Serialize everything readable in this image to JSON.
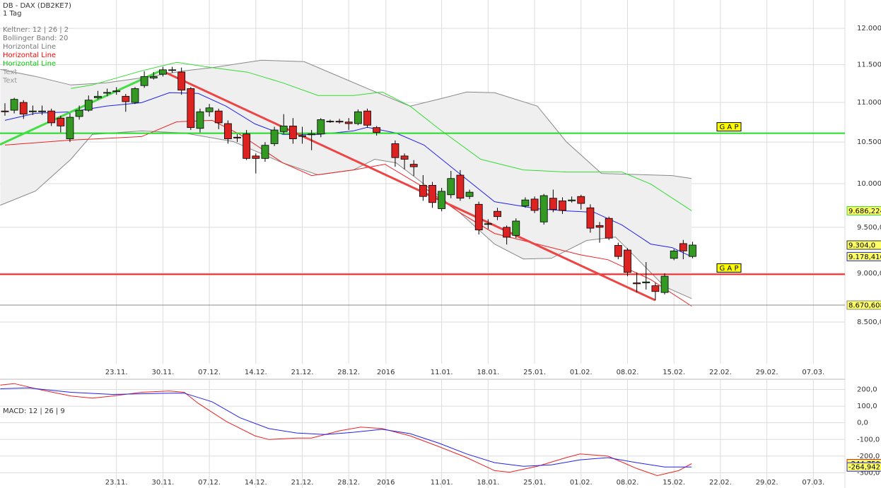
{
  "chart_data": [
    {
      "type": "candlestick",
      "title": "DB - DAX (DB2KE7)",
      "subtitle": "1 Tag",
      "log_scale": true,
      "grid": true,
      "xlim": [
        -0.53,
        90.4
      ],
      "ylim": [
        8094,
        12406
      ],
      "yticks": [
        {
          "value": 12000,
          "label": "12.000,"
        },
        {
          "value": 11500,
          "label": "11.500,"
        },
        {
          "value": 11000,
          "label": "11.000,"
        },
        {
          "value": 10500,
          "label": "10.500,"
        },
        {
          "value": 10000,
          "label": "10.000,"
        },
        {
          "value": 9500,
          "label": "9.500,0"
        },
        {
          "value": 9000,
          "label": "9.000,0"
        },
        {
          "value": 8500,
          "label": "8.500,0"
        }
      ],
      "xticks": [
        {
          "value": 12,
          "label": "23.11."
        },
        {
          "value": 17,
          "label": "30.11."
        },
        {
          "value": 22,
          "label": "07.12."
        },
        {
          "value": 27,
          "label": "14.12."
        },
        {
          "value": 32,
          "label": "21.12."
        },
        {
          "value": 37,
          "label": "28.12."
        },
        {
          "value": 41,
          "label": "2016"
        },
        {
          "value": 47,
          "label": "11.01."
        },
        {
          "value": 52,
          "label": "18.01."
        },
        {
          "value": 57,
          "label": "25.01."
        },
        {
          "value": 62,
          "label": "01.02."
        },
        {
          "value": 67,
          "label": "08.02."
        },
        {
          "value": 72,
          "label": "15.02."
        },
        {
          "value": 77,
          "label": "22.02."
        },
        {
          "value": 82,
          "label": "29.02."
        },
        {
          "value": 87,
          "label": "07.03."
        }
      ],
      "legend": [
        {
          "name": "Keltner: 12 | 26 | 2",
          "color": "#777777"
        },
        {
          "name": "Bollinger Band: 20",
          "color": "#777777"
        },
        {
          "name": "Horizontal Line",
          "color": "#777777"
        },
        {
          "name": "Horizontal Line",
          "color": "#ff0000"
        },
        {
          "name": "Horizontal Line",
          "color": "#00cc00"
        },
        {
          "name": "Text",
          "color": "#999999"
        },
        {
          "name": "Text",
          "color": "#999999"
        }
      ],
      "bollinger": {
        "color": "#888888",
        "fill": "#efefef",
        "upper": {
          "x": [
            -0.5,
            3.3,
            7.1,
            10.9,
            14.7,
            19.3,
            22.3,
            27.6,
            32.2,
            39,
            43.6,
            46.7,
            49.7,
            52.7,
            57.3,
            60.4,
            64.2,
            71.8,
            73.9
          ],
          "values": [
            11435,
            11341,
            11228,
            11256,
            11322,
            11416,
            11460,
            11560,
            11540,
            11182,
            10952,
            11043,
            11135,
            11126,
            10952,
            10506,
            10120,
            10095,
            10061
          ]
        },
        "lower": {
          "x": [
            -0.5,
            3.3,
            7.1,
            9.4,
            14.7,
            19.3,
            24.6,
            29.9,
            33.7,
            37.5,
            39.8,
            42.1,
            45.1,
            48.9,
            52.7,
            55.8,
            58.8,
            62.6,
            65.7,
            68,
            71,
            73.9
          ],
          "values": [
            9749,
            9913,
            10290,
            10594,
            10638,
            10612,
            10506,
            10247,
            10103,
            10162,
            10290,
            10247,
            9995,
            9669,
            9315,
            9153,
            9160,
            9354,
            9392,
            9160,
            8861,
            8737
          ]
        }
      },
      "lines": [
        {
          "color": "#33dd33",
          "x": [
            7.1,
            9.4,
            14.7,
            18.5,
            22.3,
            26.1,
            29.9,
            33.7,
            37.5,
            40.6,
            43.6,
            46.7,
            51.2,
            55.8,
            60.4,
            66.4,
            69.5,
            73.9
          ],
          "values": [
            11182,
            11228,
            11416,
            11530,
            11460,
            11398,
            11256,
            11090,
            11090,
            11135,
            10952,
            10665,
            10290,
            10162,
            10137,
            10137,
            9995,
            9686.224
          ],
          "last_label": "9.686,224"
        },
        {
          "color": "#2222ee",
          "x": [
            0,
            3.3,
            7.1,
            10.9,
            14.7,
            17.7,
            20.8,
            23.8,
            26.9,
            29.9,
            33.7,
            37.5,
            39,
            42.1,
            45.1,
            48.9,
            52.7,
            57.3,
            60.4,
            63.4,
            66.4,
            69.5,
            71.8,
            73.9
          ],
          "values": [
            10771,
            10861,
            10879,
            10952,
            10997,
            11126,
            11117,
            10952,
            10727,
            10594,
            10594,
            10638,
            10683,
            10612,
            10463,
            10120,
            9790,
            9709,
            9685,
            9669,
            9526,
            9315,
            9276,
            9178.416
          ],
          "last_label": "9.178,416"
        },
        {
          "color": "#ee2222",
          "x": [
            0,
            7.1,
            14.7,
            18.5,
            22.3,
            25.3,
            29.9,
            33,
            37.5,
            40.9,
            45.1,
            48.9,
            52.7,
            57.3,
            61.9,
            64.9,
            69.5,
            73.9
          ],
          "values": [
            10463,
            10524,
            10568,
            10753,
            10771,
            10594,
            10247,
            10095,
            10162,
            10230,
            9954,
            9669,
            9431,
            9315,
            9199,
            9145,
            8935,
            8660
          ]
        }
      ],
      "trendlines": [
        {
          "color": "#44dd44",
          "x": [
            -0.53,
            16.8
          ],
          "values": [
            10470,
            11420
          ]
        },
        {
          "color": "#ee4444",
          "x": [
            17,
            70
          ],
          "values": [
            11410,
            8720
          ]
        }
      ],
      "hlines": [
        {
          "color": "#888888",
          "value": 8670.608,
          "label": "8.670,608"
        },
        {
          "color": "#ff2222",
          "value": 8990,
          "text": "G A P"
        },
        {
          "color": "#22dd22",
          "value": 10610,
          "text": "G A P"
        }
      ],
      "candles": {
        "up_color": "#339922",
        "down_color": "#dd2222",
        "last_label": "9.304,0",
        "x": [
          0,
          1,
          2,
          3,
          4,
          5,
          6,
          7,
          8,
          9,
          10,
          11,
          12,
          13,
          14,
          15,
          16,
          17,
          18,
          19,
          20,
          21,
          22,
          23,
          24,
          25,
          26,
          27,
          28,
          29,
          30,
          31,
          32,
          33,
          34,
          35,
          36,
          37,
          38,
          39,
          40,
          42,
          43,
          44,
          45,
          46,
          47,
          48,
          49,
          50,
          51,
          52,
          53,
          54,
          55,
          56,
          57,
          58,
          59,
          60,
          61,
          62,
          63,
          64,
          65,
          66,
          67,
          68,
          69,
          70,
          71,
          72,
          73,
          74
        ],
        "open": [
          10890,
          10900,
          11000,
          10880,
          10880,
          10890,
          10800,
          10540,
          10820,
          10900,
          11060,
          11120,
          11140,
          11080,
          11000,
          11220,
          11320,
          11370,
          11420,
          11400,
          11180,
          10670,
          10880,
          10890,
          10730,
          10560,
          10600,
          10330,
          10300,
          10480,
          10630,
          10700,
          10570,
          10590,
          10600,
          10760,
          10760,
          10750,
          10730,
          10890,
          10680,
          10480,
          10330,
          10230,
          9980,
          9980,
          9710,
          9870,
          10100,
          9850,
          9760,
          9540,
          9680,
          9500,
          9410,
          9740,
          9820,
          9560,
          9830,
          9800,
          9800,
          9850,
          9720,
          9520,
          9600,
          9300,
          9250,
          8900,
          8900,
          8870,
          8800,
          9160,
          9320,
          9180
        ],
        "high": [
          10990,
          11060,
          11030,
          10960,
          10960,
          10920,
          10830,
          10860,
          10960,
          11090,
          11150,
          11180,
          11200,
          11110,
          11200,
          11410,
          11400,
          11470,
          11470,
          11460,
          11200,
          10920,
          10980,
          10920,
          10770,
          10600,
          10650,
          10360,
          10500,
          10690,
          10850,
          10800,
          10690,
          10650,
          10800,
          10780,
          10790,
          10800,
          10910,
          10920,
          10700,
          10520,
          10360,
          10280,
          10100,
          10020,
          9950,
          10150,
          10160,
          9930,
          9790,
          9590,
          9720,
          9520,
          9600,
          9840,
          9850,
          9880,
          9930,
          9840,
          9850,
          9870,
          9760,
          9560,
          9620,
          9330,
          9270,
          9010,
          9120,
          8900,
          9000,
          9260,
          9360,
          9340
        ],
        "low": [
          10830,
          10860,
          10790,
          10840,
          10840,
          10700,
          10620,
          10500,
          10780,
          10880,
          11040,
          11080,
          11100,
          10880,
          10980,
          11190,
          11300,
          11340,
          11390,
          11100,
          10650,
          10620,
          10820,
          10660,
          10480,
          10500,
          10280,
          10120,
          10260,
          10450,
          10600,
          10480,
          10480,
          10400,
          10560,
          10740,
          10730,
          10650,
          10710,
          10680,
          10580,
          10200,
          10170,
          10090,
          9800,
          9720,
          9680,
          9830,
          9800,
          9820,
          9420,
          9480,
          9580,
          9310,
          9380,
          9720,
          9660,
          9530,
          9670,
          9650,
          9780,
          9700,
          9440,
          9330,
          9360,
          9150,
          8970,
          8800,
          8830,
          8720,
          8780,
          9140,
          9150,
          9160
        ],
        "close": [
          10880,
          11040,
          10850,
          10890,
          10890,
          10740,
          10700,
          10810,
          10900,
          11030,
          11080,
          11130,
          11150,
          11010,
          11180,
          11340,
          11340,
          11430,
          11430,
          11160,
          10680,
          10880,
          10930,
          10740,
          10540,
          10550,
          10300,
          10300,
          10460,
          10650,
          10700,
          10540,
          10580,
          10600,
          10780,
          10760,
          10750,
          10730,
          10880,
          10710,
          10620,
          10310,
          10290,
          10200,
          9850,
          9780,
          9910,
          10060,
          9830,
          9900,
          9470,
          9540,
          9620,
          9390,
          9570,
          9810,
          9690,
          9860,
          9700,
          9690,
          9810,
          9770,
          9490,
          9500,
          9380,
          9180,
          9010,
          8890,
          8910,
          8810,
          8970,
          9240,
          9240,
          9304
        ]
      }
    },
    {
      "type": "line",
      "label": "MACD: 12 | 26 | 9",
      "grid": true,
      "xlim": [
        -0.53,
        90.4
      ],
      "ylim": [
        -391,
        257
      ],
      "yticks": [
        {
          "value": 200,
          "label": "200,0"
        },
        {
          "value": 100,
          "label": "100,0"
        },
        {
          "value": 0,
          "label": "0,0"
        },
        {
          "value": -100,
          "label": "-100,0"
        },
        {
          "value": -200,
          "label": "-200,0"
        },
        {
          "value": -300,
          "label": "-300,0"
        }
      ],
      "xticks": [
        {
          "value": 12,
          "label": "23.11."
        },
        {
          "value": 17,
          "label": "30.11."
        },
        {
          "value": 22,
          "label": "07.12."
        },
        {
          "value": 27,
          "label": "14.12."
        },
        {
          "value": 32,
          "label": "21.12."
        },
        {
          "value": 37,
          "label": "28.12."
        },
        {
          "value": 41,
          "label": "2016"
        },
        {
          "value": 47,
          "label": "11.01."
        },
        {
          "value": 52,
          "label": "18.01."
        },
        {
          "value": 57,
          "label": "25.01."
        },
        {
          "value": 62,
          "label": "01.02."
        },
        {
          "value": 67,
          "label": "08.02."
        },
        {
          "value": 72,
          "label": "15.02."
        },
        {
          "value": 77,
          "label": "22.02."
        },
        {
          "value": 82,
          "label": "29.02."
        },
        {
          "value": 87,
          "label": "07.03."
        }
      ],
      "series": [
        {
          "color": "#ee2222",
          "x": [
            -0.5,
            1,
            4,
            7.1,
            9.4,
            11.6,
            14.7,
            17.7,
            19.3,
            20.8,
            23.8,
            26.9,
            28.4,
            31.4,
            33,
            36,
            38.3,
            40.6,
            43.6,
            46.7,
            49.7,
            52.7,
            54.3,
            57.3,
            60.4,
            61.9,
            64.9,
            68,
            70.2,
            72.5,
            73.9
          ],
          "values": [
            226,
            235,
            196,
            161,
            148,
            161,
            183,
            191,
            183,
            117,
            9,
            -78,
            -100,
            -91,
            -91,
            -48,
            -26,
            -35,
            -78,
            -143,
            -209,
            -287,
            -296,
            -261,
            -209,
            -187,
            -200,
            -274,
            -317,
            -287,
            -244.759
          ],
          "last_label": "-244,759"
        },
        {
          "color": "#2222ee",
          "x": [
            -0.5,
            2.5,
            7.1,
            11.6,
            17.7,
            19.3,
            22.3,
            25.3,
            28.4,
            31.4,
            34.5,
            37.5,
            40.6,
            43.6,
            46.7,
            49.7,
            52.7,
            55.8,
            58.8,
            61.9,
            64.9,
            68,
            71,
            73.9
          ],
          "values": [
            204,
            209,
            183,
            170,
            178,
            178,
            126,
            30,
            -35,
            -61,
            -70,
            -57,
            -39,
            -65,
            -122,
            -187,
            -239,
            -261,
            -252,
            -222,
            -209,
            -239,
            -265,
            -264.942
          ],
          "last_label": "-264,942"
        }
      ]
    }
  ]
}
